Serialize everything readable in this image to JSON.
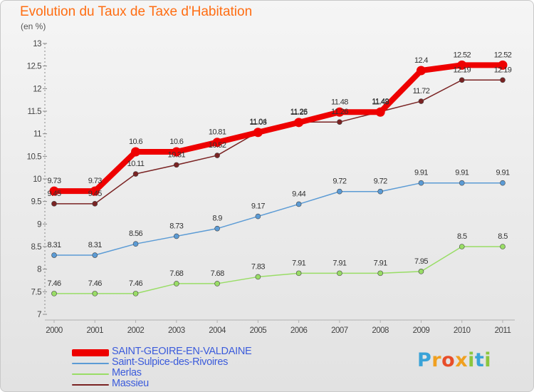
{
  "title": "Evolution du Taux de Taxe d'Habitation",
  "subtitle": "(en %)",
  "logo": {
    "text": "Proxiti",
    "colors": [
      "#3aa3d8",
      "#f0a020",
      "#e84e2a",
      "#f0a020",
      "#8cc63e",
      "#3aa3d8",
      "#8cc63e"
    ]
  },
  "chart_data": {
    "type": "line",
    "x": [
      "2000",
      "2001",
      "2002",
      "2003",
      "2004",
      "2005",
      "2006",
      "2007",
      "2008",
      "2009",
      "2010",
      "2011"
    ],
    "ylim": [
      7,
      13
    ],
    "yticks": [
      "7",
      "7.5",
      "8",
      "8.5",
      "9",
      "9.5",
      "10",
      "10.5",
      "11",
      "11.5",
      "12",
      "12.5",
      "13"
    ],
    "grid": false,
    "legend_position": "bottom-left",
    "series": [
      {
        "name": "SAINT-GEOIRE-EN-VALDAINE",
        "color": "#ee0000",
        "values": [
          9.73,
          9.73,
          10.6,
          10.6,
          10.81,
          11.03,
          11.25,
          11.48,
          11.48,
          12.4,
          12.52,
          12.52
        ],
        "labels": [
          "9.73",
          "9.73",
          "10.6",
          "10.6",
          "10.81",
          "11.03",
          "11.25",
          "11.48",
          "11.48",
          "12.4",
          "12.52",
          "12.52"
        ]
      },
      {
        "name": "Saint-Sulpice-des-Rivoires",
        "color": "#5b9bd5",
        "values": [
          8.31,
          8.31,
          8.56,
          8.73,
          8.9,
          9.17,
          9.44,
          9.72,
          9.72,
          9.91,
          9.91,
          9.91
        ],
        "labels": [
          "8.31",
          "8.31",
          "8.56",
          "8.73",
          "8.9",
          "9.17",
          "9.44",
          "9.72",
          "9.72",
          "9.91",
          "9.91",
          "9.91"
        ]
      },
      {
        "name": "Merlas",
        "color": "#99dd66",
        "values": [
          7.46,
          7.46,
          7.46,
          7.68,
          7.68,
          7.83,
          7.91,
          7.91,
          7.91,
          7.95,
          8.5,
          8.5
        ],
        "labels": [
          "7.46",
          "7.46",
          "7.46",
          "7.68",
          "7.68",
          "7.83",
          "7.91",
          "7.91",
          "7.91",
          "7.95",
          "8.5",
          "8.5"
        ]
      },
      {
        "name": "Massieu",
        "color": "#7a2323",
        "values": [
          9.45,
          9.45,
          10.11,
          10.31,
          10.52,
          11.04,
          11.26,
          11.26,
          11.49,
          11.72,
          12.19,
          12.19
        ],
        "labels": [
          "9.45",
          "9.45",
          "10.11",
          "10.31",
          "10.52",
          "11.04",
          "11.26",
          "11.26",
          "11.49",
          "11.72",
          "12.19",
          "12.19"
        ]
      }
    ]
  }
}
